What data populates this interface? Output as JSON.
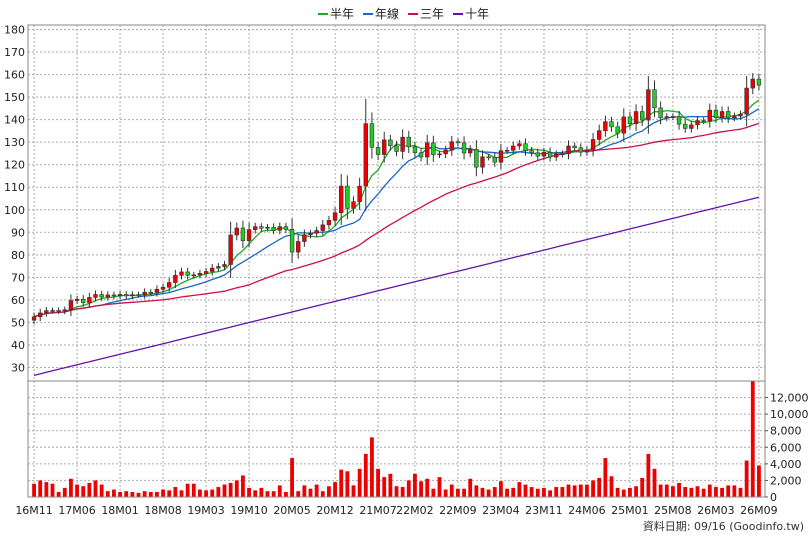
{
  "legend": [
    {
      "name": "半年",
      "color": "#22aa22"
    },
    {
      "name": "年線",
      "color": "#1a66cc"
    },
    {
      "name": "三年",
      "color": "#cc1144"
    },
    {
      "name": "十年",
      "color": "#6611aa"
    }
  ],
  "source": "資料日期: 09/16 (Goodinfo.tw)",
  "chart_data": {
    "type": "candlestick",
    "price_axis": {
      "ticks": [
        30,
        40,
        50,
        60,
        70,
        80,
        90,
        100,
        110,
        120,
        130,
        140,
        150,
        160,
        170,
        180
      ],
      "ylim": [
        24,
        182
      ]
    },
    "volume_axis": {
      "ticks": [
        0,
        2000,
        4000,
        6000,
        8000,
        10000,
        12000
      ],
      "tick_labels": [
        "0",
        "2,000",
        "4,000",
        "6,000",
        "8,000",
        "10,000",
        "12,000"
      ],
      "ylim": [
        0,
        14000
      ]
    },
    "x_labels": [
      "16M11",
      "17M06",
      "18M01",
      "18M08",
      "19M03",
      "19M10",
      "20M05",
      "20M12",
      "21M07",
      "22M02",
      "22M09",
      "23M04",
      "23M11",
      "24M06",
      "25M01",
      "25M08",
      "26M03",
      "26M09"
    ],
    "grid": true,
    "candle_colors": {
      "up": "#ee0000",
      "down": "#22cc22"
    },
    "volume_color": "#ee0000",
    "months_count": 119,
    "close": [
      52.5,
      54.2,
      55.2,
      55.3,
      55.1,
      55.6,
      59.7,
      60.3,
      58.8,
      61.1,
      62.4,
      61.3,
      62.2,
      61.8,
      62.4,
      61.8,
      62.3,
      62.2,
      63.4,
      63.3,
      64.7,
      65.6,
      67.7,
      70.9,
      72.4,
      70.9,
      71.1,
      71.8,
      72.6,
      74.1,
      74.8,
      75.7,
      88.8,
      91.9,
      86.3,
      91.2,
      92.5,
      91.8,
      92.2,
      90.9,
      92.5,
      91.3,
      81.2,
      85.9,
      88.9,
      89.6,
      90.8,
      93.3,
      95.3,
      98.7,
      110.5,
      100.6,
      103.6,
      110.5,
      138.2,
      127.7,
      124.5,
      131,
      128.4,
      125.9,
      132.2,
      127.9,
      125.3,
      123.4,
      129.7,
      124.4,
      124.8,
      126.5,
      130.2,
      129.7,
      125.2,
      126.8,
      118.9,
      123.5,
      123.3,
      121.1,
      126.2,
      126.4,
      128.3,
      129.3,
      126.3,
      125.3,
      123.8,
      125.5,
      123.4,
      124.6,
      124.9,
      128.3,
      127.5,
      125.6,
      126.6,
      131.2,
      135.1,
      139.1,
      136.8,
      134,
      141.2,
      138.2,
      143.6,
      139.8,
      153.3,
      145.2,
      140.8,
      141.3,
      141.4,
      138,
      136.1,
      137.7,
      139.6,
      139.4,
      144.2,
      140.9,
      143.6,
      140.8,
      141.6,
      142.4,
      154,
      158,
      155.3
    ],
    "volume": [
      1600,
      2000,
      1800,
      1600,
      600,
      1100,
      2200,
      1500,
      1300,
      1700,
      2000,
      1500,
      700,
      900,
      600,
      700,
      600,
      500,
      700,
      600,
      600,
      900,
      800,
      1200,
      800,
      1600,
      1600,
      900,
      800,
      900,
      1200,
      1500,
      1700,
      2000,
      2600,
      1100,
      800,
      1100,
      700,
      700,
      1400,
      600,
      4700,
      700,
      1400,
      1000,
      1500,
      700,
      1300,
      1800,
      3300,
      3100,
      1400,
      3400,
      5200,
      7200,
      3400,
      2400,
      2800,
      1300,
      1200,
      2000,
      2800,
      1900,
      2200,
      1000,
      2400,
      900,
      1500,
      1000,
      1000,
      2200,
      1400,
      1100,
      900,
      1200,
      1900,
      1000,
      1100,
      1800,
      1500,
      1200,
      1000,
      1100,
      800,
      1200,
      1200,
      1500,
      1400,
      1500,
      1500,
      2000,
      2300,
      4700,
      2500,
      1100,
      900,
      1100,
      1300,
      2300,
      5200,
      3400,
      1500,
      1500,
      1300,
      1700,
      1200,
      1100,
      1300,
      1000,
      1500,
      1200,
      1100,
      1400,
      1400,
      1100,
      4400,
      25000,
      3800
    ]
  }
}
